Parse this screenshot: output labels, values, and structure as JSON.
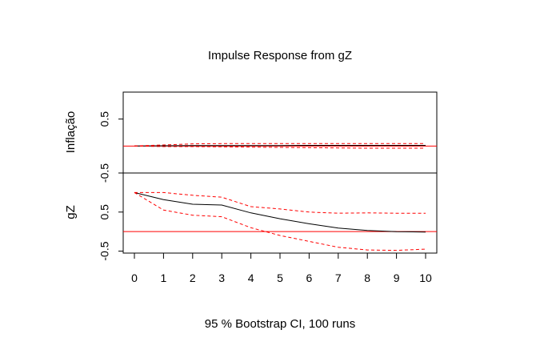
{
  "chart_data": {
    "type": "line",
    "title": "Impulse Response from gZ",
    "xlabel": "95 % Bootstrap CI,  100 runs",
    "colors": {
      "response": "#000000",
      "ci": "#ff0000",
      "zero": "#ff0000",
      "frame": "#000000"
    },
    "x": [
      0,
      1,
      2,
      3,
      4,
      5,
      6,
      7,
      8,
      9,
      10
    ],
    "x_ticks": [
      "0",
      "1",
      "2",
      "3",
      "4",
      "5",
      "6",
      "7",
      "8",
      "9",
      "10"
    ],
    "panels": [
      {
        "ylabel": "Inflação",
        "ylim": [
          -0.5,
          1.0
        ],
        "y_ticks": [
          "-0.5",
          "0.5"
        ],
        "y_tick_values": [
          -0.5,
          0.5
        ],
        "zero_line": 0,
        "series": [
          {
            "role": "response",
            "values": [
              0.0,
              0.005,
              0.01,
              0.01,
              0.01,
              0.01,
              0.012,
              0.012,
              0.012,
              0.012,
              0.012
            ]
          },
          {
            "role": "ci_upper",
            "values": [
              0.0,
              0.02,
              0.04,
              0.045,
              0.045,
              0.045,
              0.045,
              0.045,
              0.045,
              0.045,
              0.045
            ]
          },
          {
            "role": "ci_lower",
            "values": [
              0.0,
              -0.01,
              -0.01,
              -0.015,
              -0.02,
              -0.025,
              -0.03,
              -0.035,
              -0.04,
              -0.04,
              -0.04
            ]
          }
        ]
      },
      {
        "ylabel": "gZ",
        "ylim": [
          -0.55,
          1.5
        ],
        "y_ticks": [
          "-0.5",
          "0.5"
        ],
        "y_tick_values": [
          -0.5,
          0.5
        ],
        "zero_line": 0,
        "series": [
          {
            "role": "response",
            "values": [
              1.0,
              0.82,
              0.7,
              0.68,
              0.48,
              0.33,
              0.2,
              0.09,
              0.03,
              0.0,
              -0.01
            ]
          },
          {
            "role": "ci_upper",
            "values": [
              1.0,
              1.0,
              0.93,
              0.88,
              0.64,
              0.58,
              0.5,
              0.47,
              0.48,
              0.47,
              0.47
            ]
          },
          {
            "role": "ci_lower",
            "values": [
              1.0,
              0.55,
              0.42,
              0.38,
              0.1,
              -0.1,
              -0.25,
              -0.4,
              -0.47,
              -0.48,
              -0.45
            ]
          }
        ]
      }
    ]
  }
}
